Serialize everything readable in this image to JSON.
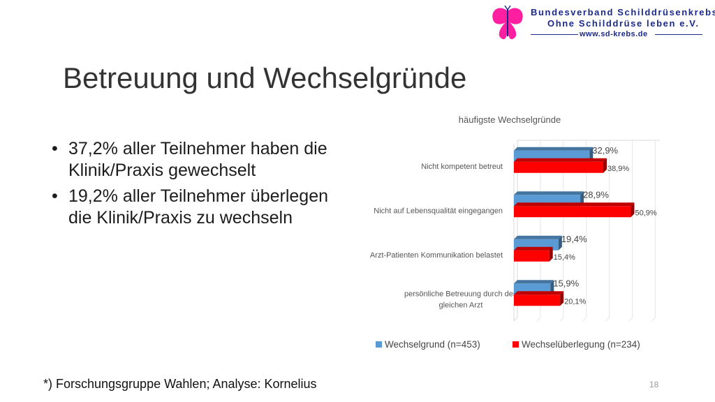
{
  "header": {
    "org_line1": "Bundesverband Schilddrüsenkrebs",
    "org_line2": "Ohne Schilddrüse leben e.V.",
    "org_url": "www.sd-krebs.de"
  },
  "slide": {
    "title": "Betreuung und Wechselgründe",
    "bullets": [
      "37,2% aller Teilnehmer haben die Klinik/Praxis gewechselt",
      "19,2% aller Teilnehmer überlegen die Klinik/Praxis zu wechseln"
    ],
    "bullet_glyph": "•",
    "footnote": "*) Forschungsgruppe Wahlen; Analyse: Kornelius",
    "page_number": "18"
  },
  "chart_data": {
    "type": "bar",
    "orientation": "horizontal",
    "title": "häufigste Wechselgründe",
    "categories": [
      "Nicht kompetent betreut",
      "Nicht auf Lebensqualität eingegangen",
      "Arzt-Patienten Kommunikation belastet",
      "persönliche Betreuung durch den gleichen Arzt"
    ],
    "series": [
      {
        "name": "Wechselgrund (n=453)",
        "values": [
          32.9,
          28.9,
          19.4,
          15.9
        ],
        "labels": [
          "32,9%",
          "28,9%",
          "19,4%",
          "15,9%"
        ],
        "color": "#5b9bd5"
      },
      {
        "name": "Wechselüberlegung (n=234)",
        "values": [
          38.9,
          50.9,
          15.4,
          20.1
        ],
        "labels": [
          "38,9%",
          "50,9%",
          "15,4%",
          "20,1%"
        ],
        "color": "#ff0000"
      }
    ],
    "xlim": [
      0,
      62
    ],
    "grid": true,
    "legend": "bottom"
  }
}
